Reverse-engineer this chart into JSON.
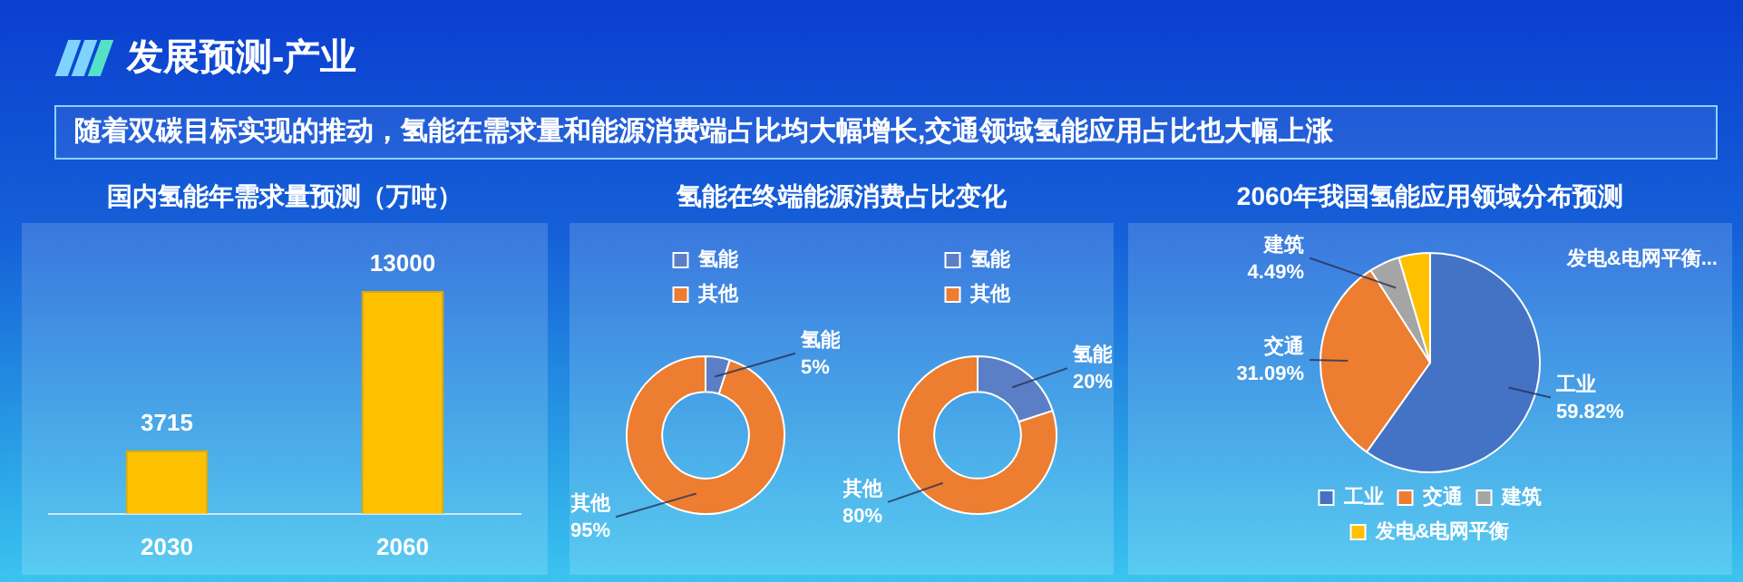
{
  "chart_data": [
    {
      "type": "other",
      "title": "发展预测-产业",
      "subtitle": "随着双碳目标实现的推动，氢能在需求量和能源消费端占比均大幅增长,交通领域氢能应用占比也大幅上涨"
    },
    {
      "type": "bar",
      "title": "国内氢能年需求量预测（万吨）",
      "categories": [
        "2030",
        "2060"
      ],
      "values": [
        3715,
        13000
      ],
      "color": "#ffc000",
      "data_labels": true,
      "tick_labels": "x"
    },
    {
      "type": "donut",
      "title": "氢能在终端能源消费占比变化",
      "categories": [
        "氢能",
        "其他"
      ],
      "values": [
        5,
        95
      ],
      "colors": [
        "#5b7fc7",
        "#ed7d31"
      ],
      "value_labels": [
        "5%",
        "95%"
      ],
      "legend": "top"
    },
    {
      "type": "donut",
      "categories": [
        "氢能",
        "其他"
      ],
      "values": [
        20,
        80
      ],
      "colors": [
        "#5b7fc7",
        "#ed7d31"
      ],
      "value_labels": [
        "20%",
        "80%"
      ],
      "legend": "top"
    },
    {
      "type": "pie",
      "title": "2060年我国氢能应用领域分布预测",
      "categories": [
        "工业",
        "交通",
        "建筑",
        "发电&电网平衡"
      ],
      "values": [
        59.82,
        31.09,
        4.49,
        4.6
      ],
      "colors": [
        "#4472c4",
        "#ed7d31",
        "#a5a5a5",
        "#ffc000"
      ],
      "value_labels": [
        "59.82%",
        "31.09%",
        "4.49%",
        null
      ],
      "annotations": [
        "发电&电网平衡..."
      ],
      "legend": "bottom"
    }
  ]
}
